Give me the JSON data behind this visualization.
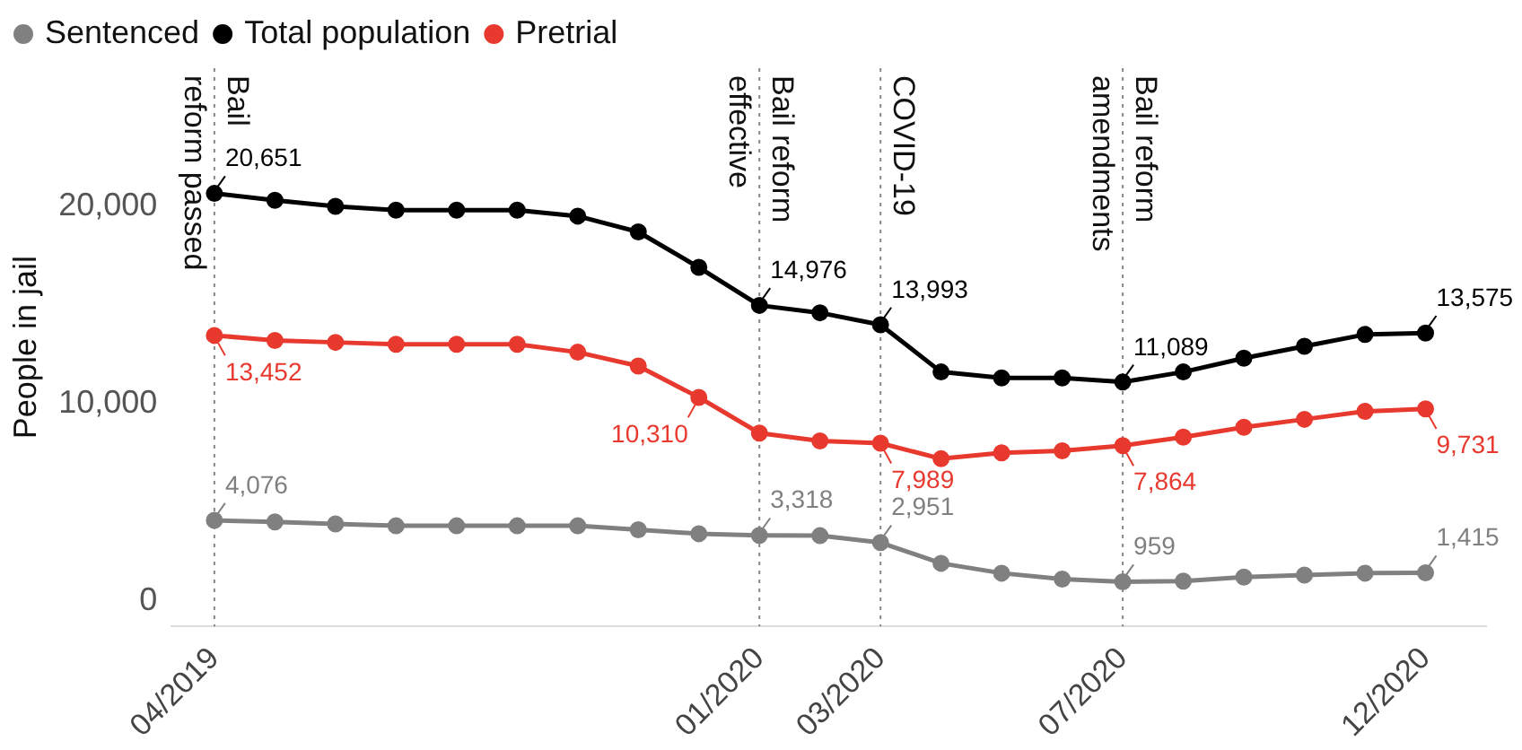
{
  "chart_data": {
    "type": "line",
    "ylabel": "People in jail",
    "x": [
      "2019-04",
      "2019-05",
      "2019-06",
      "2019-07",
      "2019-08",
      "2019-09",
      "2019-10",
      "2019-11",
      "2019-12",
      "2020-01",
      "2020-02",
      "2020-03",
      "2020-04",
      "2020-05",
      "2020-06",
      "2020-07",
      "2020-08",
      "2020-09",
      "2020-10",
      "2020-11",
      "2020-12"
    ],
    "series": [
      {
        "name": "Sentenced",
        "color": "#808080",
        "values": [
          4076,
          4000,
          3900,
          3800,
          3800,
          3800,
          3800,
          3600,
          3400,
          3318,
          3300,
          2951,
          1900,
          1400,
          1100,
          959,
          1000,
          1200,
          1300,
          1400,
          1415
        ],
        "value_labels": [
          "4,076",
          null,
          null,
          null,
          null,
          null,
          null,
          null,
          null,
          "3,318",
          null,
          "2,951",
          null,
          null,
          null,
          "959",
          null,
          null,
          null,
          null,
          "1,415"
        ]
      },
      {
        "name": "Total population",
        "color": "#000000",
        "values": [
          20651,
          20300,
          20000,
          19800,
          19800,
          19800,
          19500,
          18700,
          16900,
          14976,
          14600,
          13993,
          11600,
          11300,
          11300,
          11089,
          11600,
          12300,
          12900,
          13500,
          13575
        ],
        "value_labels": [
          "20,651",
          null,
          null,
          null,
          null,
          null,
          null,
          null,
          null,
          "14,976",
          null,
          "13,993",
          null,
          null,
          null,
          "11,089",
          null,
          null,
          null,
          null,
          "13,575"
        ]
      },
      {
        "name": "Pretrial",
        "color": "#e8392f",
        "values": [
          13452,
          13200,
          13100,
          13000,
          13000,
          13000,
          12600,
          11900,
          10310,
          8500,
          8100,
          7989,
          7200,
          7500,
          7600,
          7864,
          8300,
          8800,
          9200,
          9600,
          9731
        ],
        "value_labels": [
          "13,452",
          null,
          null,
          null,
          null,
          null,
          null,
          null,
          "10,310",
          null,
          null,
          "7,989",
          null,
          null,
          null,
          "7,864",
          null,
          null,
          null,
          null,
          "9,731"
        ]
      }
    ],
    "xlim": [
      "2019-03-10",
      "2021-01-01"
    ],
    "xticks": [
      {
        "value": "2019-04",
        "label": "04/2019"
      },
      {
        "value": "2020-01",
        "label": "01/2020"
      },
      {
        "value": "2020-03",
        "label": "03/2020"
      },
      {
        "value": "2020-07",
        "label": "07/2020"
      },
      {
        "value": "2020-12",
        "label": "12/2020"
      }
    ],
    "ylim": [
      -1300,
      27000
    ],
    "yticks": [
      0,
      {
        "value": 10000,
        "label": "10,000"
      },
      {
        "value": 20000,
        "label": "20,000"
      }
    ],
    "ref_lines": [
      {
        "axis": "x",
        "value": "2019-04",
        "label": "Bail\nreform passed",
        "color": "#888888",
        "line_style": "dotted"
      },
      {
        "axis": "x",
        "value": "2020-01",
        "label": "Bail reform\neffective",
        "color": "#888888",
        "line_style": "dotted"
      },
      {
        "axis": "x",
        "value": "2020-03",
        "label": "COVID-19",
        "color": "#888888",
        "line_style": "dotted"
      },
      {
        "axis": "x",
        "value": "2020-07",
        "label": "Bail reform\namendments",
        "color": "#888888",
        "line_style": "dotted"
      }
    ],
    "grid": false,
    "legend": "top left",
    "marker": "circle",
    "line_style": "solid"
  }
}
